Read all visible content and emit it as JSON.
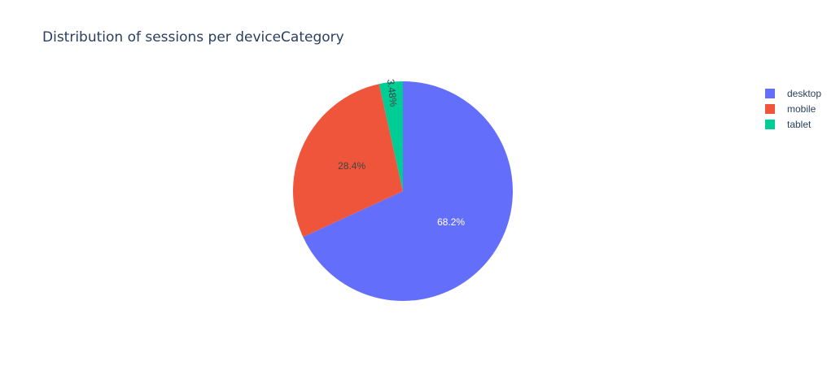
{
  "chart_data": {
    "type": "pie",
    "title": "Distribution of sessions per deviceCategory",
    "categories": [
      "desktop",
      "mobile",
      "tablet"
    ],
    "values": [
      68.2,
      28.4,
      3.48
    ],
    "labels": [
      "68.2%",
      "28.4%",
      "3.48%"
    ],
    "colors": [
      "#636efa",
      "#EF553B",
      "#00cc96"
    ],
    "label_colors": [
      "#ffffff",
      "#444444",
      "#444444"
    ],
    "start_angle": 90,
    "direction": "clockwise",
    "legend_position": "top-right"
  }
}
